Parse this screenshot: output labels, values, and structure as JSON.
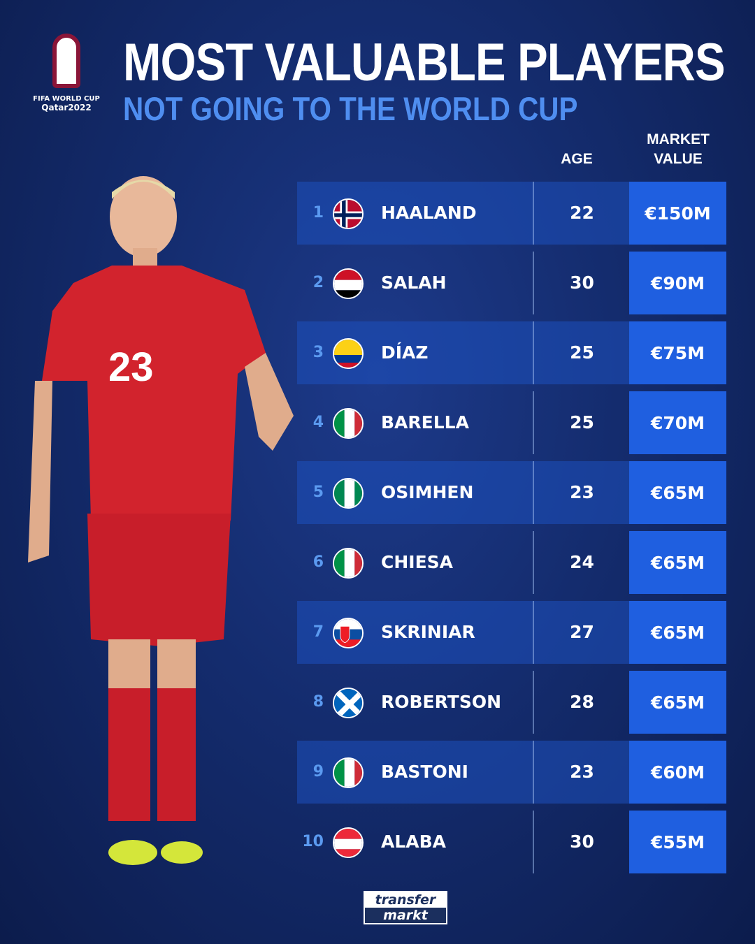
{
  "logo": {
    "line1": "FIFA WORLD CUP",
    "line2": "Qatar2022"
  },
  "title": "MOST VALUABLE PLAYERS",
  "subtitle": "NOT GOING TO THE WORLD CUP",
  "headers": {
    "age": "AGE",
    "value_line1": "MARKET",
    "value_line2": "VALUE"
  },
  "rows": [
    {
      "rank": "1",
      "flag": "norway",
      "name": "HAALAND",
      "age": "22",
      "value": "€150M"
    },
    {
      "rank": "2",
      "flag": "egypt",
      "name": "SALAH",
      "age": "30",
      "value": "€90M"
    },
    {
      "rank": "3",
      "flag": "colombia",
      "name": "DÍAZ",
      "age": "25",
      "value": "€75M"
    },
    {
      "rank": "4",
      "flag": "italy",
      "name": "BARELLA",
      "age": "25",
      "value": "€70M"
    },
    {
      "rank": "5",
      "flag": "nigeria",
      "name": "OSIMHEN",
      "age": "23",
      "value": "€65M"
    },
    {
      "rank": "6",
      "flag": "italy",
      "name": "CHIESA",
      "age": "24",
      "value": "€65M"
    },
    {
      "rank": "7",
      "flag": "slovakia",
      "name": "SKRINIAR",
      "age": "27",
      "value": "€65M"
    },
    {
      "rank": "8",
      "flag": "scotland",
      "name": "ROBERTSON",
      "age": "28",
      "value": "€65M"
    },
    {
      "rank": "9",
      "flag": "italy",
      "name": "BASTONI",
      "age": "23",
      "value": "€60M"
    },
    {
      "rank": "10",
      "flag": "austria",
      "name": "ALABA",
      "age": "30",
      "value": "€55M"
    }
  ],
  "player_shirt_number": "23",
  "brand": {
    "line1": "transfer",
    "line2": "markt"
  },
  "colors": {
    "accent": "#4f8ef0",
    "value_cell": "#1f5fe0",
    "background": "#142c6e"
  }
}
